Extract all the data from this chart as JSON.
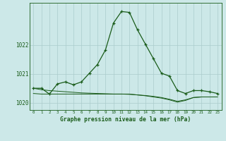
{
  "background_color": "#cce8e8",
  "grid_color": "#aacccc",
  "line_color": "#1a5c1a",
  "x_values": [
    0,
    1,
    2,
    3,
    4,
    5,
    6,
    7,
    8,
    9,
    10,
    11,
    12,
    13,
    14,
    15,
    16,
    17,
    18,
    19,
    20,
    21,
    22,
    23
  ],
  "series1": [
    1020.5,
    1020.5,
    1020.3,
    1020.65,
    1020.72,
    1020.62,
    1020.72,
    1021.02,
    1021.32,
    1021.82,
    1022.75,
    1023.15,
    1023.12,
    1022.52,
    1022.02,
    1021.52,
    1021.02,
    1020.92,
    1020.42,
    1020.32,
    1020.42,
    1020.42,
    1020.38,
    1020.32
  ],
  "series2": [
    1020.5,
    1020.45,
    1020.42,
    1020.4,
    1020.38,
    1020.36,
    1020.34,
    1020.33,
    1020.32,
    1020.31,
    1020.3,
    1020.3,
    1020.29,
    1020.27,
    1020.25,
    1020.22,
    1020.18,
    1020.12,
    1020.05,
    1020.1,
    1020.18,
    1020.2,
    1020.2,
    1020.2
  ],
  "series3": [
    1020.32,
    1020.3,
    1020.3,
    1020.3,
    1020.3,
    1020.3,
    1020.3,
    1020.3,
    1020.3,
    1020.3,
    1020.3,
    1020.3,
    1020.3,
    1020.27,
    1020.24,
    1020.2,
    1020.16,
    1020.1,
    1020.02,
    1020.08,
    1020.18,
    1020.2,
    1020.2,
    1020.2
  ],
  "ylim": [
    1019.75,
    1023.45
  ],
  "ytick_positions": [
    1020,
    1021,
    1022
  ],
  "ytick_labels": [
    "1020",
    "1021",
    "1022"
  ],
  "xlabel": "Graphe pression niveau de la mer (hPa)"
}
